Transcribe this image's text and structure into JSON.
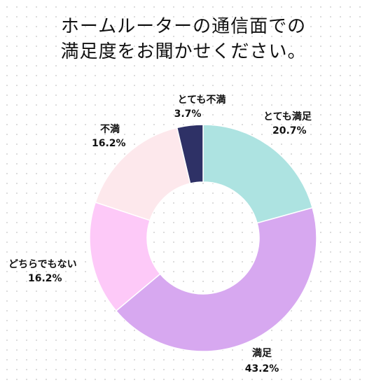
{
  "chart_data": {
    "type": "pie",
    "variant": "donut",
    "title_lines": [
      "ホームルーターの通信面での",
      "満足度をお聞かせください。"
    ],
    "categories": [
      "とても満足",
      "満足",
      "どちらでもない",
      "不満",
      "とても不満"
    ],
    "values": [
      20.7,
      43.2,
      16.2,
      16.2,
      3.7
    ],
    "value_labels": [
      "20.7%",
      "43.2%",
      "16.2%",
      "16.2%",
      "3.7%"
    ],
    "colors": [
      "#ade3e1",
      "#d7a8f0",
      "#fdc9f8",
      "#fde8ec",
      "#2e3166"
    ],
    "legend": "none"
  }
}
